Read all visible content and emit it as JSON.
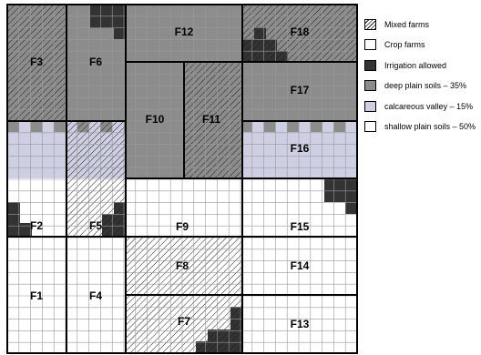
{
  "legend": [
    {
      "key": "mixed",
      "label": "Mixed farms",
      "swatch": "hatched"
    },
    {
      "key": "crop",
      "label": "Crop farms",
      "swatch": "#ffffff"
    },
    {
      "key": "irrigation",
      "label": "Irrigation allowed",
      "swatch": "#333333"
    },
    {
      "key": "deep",
      "label": "deep plain soils – 35%",
      "swatch": "#8c8c8c"
    },
    {
      "key": "calcareous",
      "label": "calcareous valley – 15%",
      "swatch": "#cfcfe4"
    },
    {
      "key": "shallow",
      "label": "shallow plain soils – 50%",
      "swatch": "#ffffff"
    }
  ],
  "farms": [
    {
      "id": "F1",
      "type": "crop"
    },
    {
      "id": "F2",
      "type": "crop",
      "irrigation": true
    },
    {
      "id": "F3",
      "type": "mixed"
    },
    {
      "id": "F4",
      "type": "crop"
    },
    {
      "id": "F5",
      "type": "mixed",
      "irrigation": true
    },
    {
      "id": "F6",
      "type": "crop",
      "irrigation": true
    },
    {
      "id": "F7",
      "type": "mixed",
      "irrigation": true
    },
    {
      "id": "F8",
      "type": "mixed"
    },
    {
      "id": "F9",
      "type": "crop"
    },
    {
      "id": "F10",
      "type": "crop"
    },
    {
      "id": "F11",
      "type": "mixed"
    },
    {
      "id": "F12",
      "type": "crop"
    },
    {
      "id": "F13",
      "type": "crop"
    },
    {
      "id": "F14",
      "type": "crop"
    },
    {
      "id": "F15",
      "type": "crop",
      "irrigation": true
    },
    {
      "id": "F16",
      "type": "crop"
    },
    {
      "id": "F17",
      "type": "crop"
    },
    {
      "id": "F18",
      "type": "mixed",
      "irrigation": true
    }
  ],
  "colors": {
    "deep": "#8c8c8c",
    "calcareous": "#cfcfe4",
    "shallow": "#ffffff",
    "irrigation": "#333333",
    "hatch": "#1e1e1e",
    "grid": "#9a9a9a",
    "border": "#000000"
  }
}
